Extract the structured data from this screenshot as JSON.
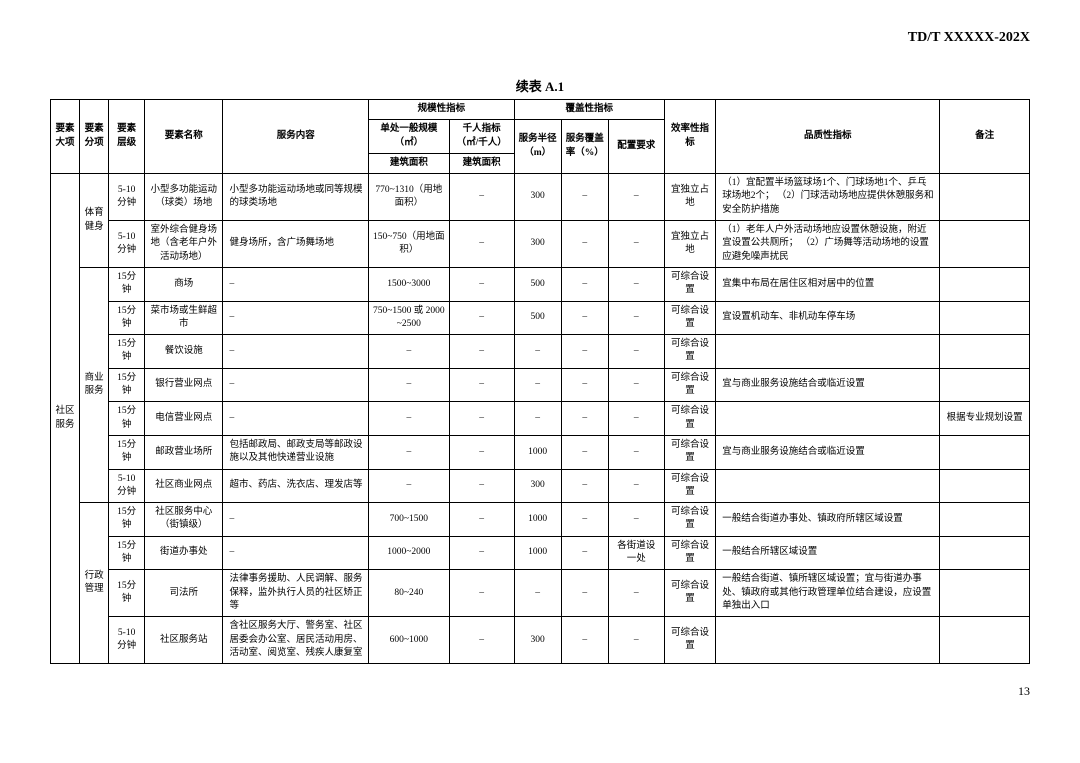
{
  "doc_id": "TD/T  XXXXX-202X",
  "table_title": "续表 A.1",
  "page_num": "13",
  "headers": {
    "col_major": "要素大项",
    "col_category": "要素分项",
    "col_level": "要素层级",
    "col_name": "要素名称",
    "col_service": "服务内容",
    "col_scale_group": "规模性指标",
    "col_scale_single": "单处一般规模（㎡）",
    "col_scale_thousand": "千人指标（㎡/千人）",
    "col_scale_sub1": "建筑面积",
    "col_scale_sub2": "建筑面积",
    "col_cover_group": "覆盖性指标",
    "col_radius": "服务半径（m）",
    "col_cover_rate": "服务覆盖率（%）",
    "col_config": "配置要求",
    "col_efficiency": "效率性指标",
    "col_quality": "品质性指标",
    "col_note": "备注"
  },
  "major": "社区服务",
  "groups": [
    {
      "category": "体育健身",
      "rows": [
        {
          "level": "5-10分钟",
          "name": "小型多功能运动（球类）场地",
          "service": "小型多功能运动场地或同等规模的球类场地",
          "scale": "770~1310（用地面积）",
          "thousand": "–",
          "radius": "300",
          "rate": "–",
          "config": "–",
          "eff": "宜独立占地",
          "quality": "（1）宜配置半场篮球场1个、门球场地1个、乒乓球场地2个；\n（2）门球活动场地应提供休憩服务和安全防护措施",
          "note": ""
        },
        {
          "level": "5-10分钟",
          "name": "室外综合健身场地（含老年户外活动场地）",
          "service": "健身场所，含广场舞场地",
          "scale": "150~750（用地面积）",
          "thousand": "–",
          "radius": "300",
          "rate": "–",
          "config": "–",
          "eff": "宜独立占地",
          "quality": "（1）老年人户外活动场地应设置休憩设施，附近宜设置公共厕所；\n（2）广场舞等活动场地的设置应避免噪声扰民",
          "note": ""
        }
      ]
    },
    {
      "category": "商业服务",
      "rows": [
        {
          "level": "15分钟",
          "name": "商场",
          "service": "–",
          "scale": "1500~3000",
          "thousand": "–",
          "radius": "500",
          "rate": "–",
          "config": "–",
          "eff": "可综合设置",
          "quality": "宜集中布局在居住区相对居中的位置",
          "note": ""
        },
        {
          "level": "15分钟",
          "name": "菜市场或生鲜超市",
          "service": "–",
          "scale": "750~1500 或 2000~2500",
          "thousand": "–",
          "radius": "500",
          "rate": "–",
          "config": "–",
          "eff": "可综合设置",
          "quality": "宜设置机动车、非机动车停车场",
          "note": ""
        },
        {
          "level": "15分钟",
          "name": "餐饮设施",
          "service": "–",
          "scale": "–",
          "thousand": "–",
          "radius": "–",
          "rate": "–",
          "config": "–",
          "eff": "可综合设置",
          "quality": "",
          "note": ""
        },
        {
          "level": "15分钟",
          "name": "银行营业网点",
          "service": "–",
          "scale": "–",
          "thousand": "–",
          "radius": "–",
          "rate": "–",
          "config": "–",
          "eff": "可综合设置",
          "quality": "宜与商业服务设施结合或临近设置",
          "note": ""
        },
        {
          "level": "15分钟",
          "name": "电信营业网点",
          "service": "–",
          "scale": "–",
          "thousand": "–",
          "radius": "–",
          "rate": "–",
          "config": "–",
          "eff": "可综合设置",
          "quality": "",
          "note": "根据专业规划设置"
        },
        {
          "level": "15分钟",
          "name": "邮政营业场所",
          "service": "包括邮政局、邮政支局等邮政设施以及其他快递营业设施",
          "scale": "–",
          "thousand": "–",
          "radius": "1000",
          "rate": "–",
          "config": "–",
          "eff": "可综合设置",
          "quality": "宜与商业服务设施结合或临近设置",
          "note": ""
        },
        {
          "level": "5-10分钟",
          "name": "社区商业网点",
          "service": "超市、药店、洗衣店、理发店等",
          "scale": "–",
          "thousand": "–",
          "radius": "300",
          "rate": "–",
          "config": "–",
          "eff": "可综合设置",
          "quality": "",
          "note": ""
        }
      ]
    },
    {
      "category": "行政管理",
      "rows": [
        {
          "level": "15分钟",
          "name": "社区服务中心（街镇级）",
          "service": "–",
          "scale": "700~1500",
          "thousand": "–",
          "radius": "1000",
          "rate": "–",
          "config": "–",
          "eff": "可综合设置",
          "quality": "一般结合街道办事处、镇政府所辖区域设置",
          "note": ""
        },
        {
          "level": "15分钟",
          "name": "街道办事处",
          "service": "–",
          "scale": "1000~2000",
          "thousand": "–",
          "radius": "1000",
          "rate": "–",
          "config": "各街道设一处",
          "eff": "可综合设置",
          "quality": "一般结合所辖区域设置",
          "note": ""
        },
        {
          "level": "15分钟",
          "name": "司法所",
          "service": "法律事务援助、人民调解、服务保释，监外执行人员的社区矫正等",
          "scale": "80~240",
          "thousand": "–",
          "radius": "–",
          "rate": "–",
          "config": "–",
          "eff": "可综合设置",
          "quality": "一般结合街道、镇所辖区域设置；宜与街道办事处、镇政府或其他行政管理单位结合建设，应设置单独出入口",
          "note": ""
        },
        {
          "level": "5-10分钟",
          "name": "社区服务站",
          "service": "含社区服务大厅、警务室、社区居委会办公室、居民活动用房、活动室、阅览室、残疾人康复室",
          "scale": "600~1000",
          "thousand": "–",
          "radius": "300",
          "rate": "–",
          "config": "–",
          "eff": "可综合设置",
          "quality": "",
          "note": ""
        }
      ]
    }
  ]
}
